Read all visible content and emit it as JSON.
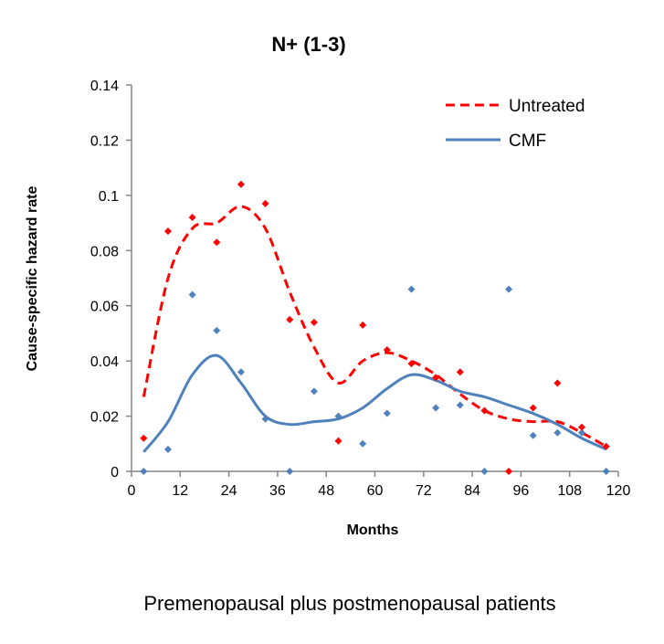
{
  "chart_data": {
    "type": "line",
    "title": "N+ (1-3)",
    "xlabel": "Months",
    "ylabel": "Cause-specific hazard rate",
    "caption": "Premenopausal plus postmenopausal patients",
    "xlim": [
      0,
      120
    ],
    "ylim": [
      0,
      0.14
    ],
    "xticks": [
      0,
      12,
      24,
      36,
      48,
      60,
      72,
      84,
      96,
      108,
      120
    ],
    "yticks": [
      0,
      0.02,
      0.04,
      0.06,
      0.08,
      0.1,
      0.12,
      0.14
    ],
    "ytick_labels": [
      "0",
      "0.02",
      "0.04",
      "0.06",
      "0.08",
      "0.1",
      "0.12",
      "0.14"
    ],
    "legend_position": "top-right",
    "grid": false,
    "series": [
      {
        "name": "Untreated",
        "color": "#ff0000",
        "style": "dashed",
        "points_x": [
          3,
          9,
          15,
          21,
          27,
          33,
          39,
          45,
          51,
          57,
          63,
          69,
          75,
          81,
          87,
          93,
          99,
          105,
          111,
          117
        ],
        "points_y": [
          0.012,
          0.087,
          0.092,
          0.083,
          0.104,
          0.097,
          0.055,
          0.054,
          0.011,
          0.053,
          0.044,
          0.039,
          0.034,
          0.036,
          0.022,
          0,
          0.023,
          0.032,
          0.016,
          0.009
        ],
        "trend_y": [
          0.027,
          0.07,
          0.088,
          0.09,
          0.096,
          0.088,
          0.065,
          0.045,
          0.032,
          0.04,
          0.043,
          0.04,
          0.035,
          0.028,
          0.022,
          0.019,
          0.018,
          0.018,
          0.014,
          0.009
        ]
      },
      {
        "name": "CMF",
        "color": "#4f81bd",
        "style": "solid",
        "points_x": [
          3,
          9,
          15,
          21,
          27,
          33,
          39,
          45,
          51,
          57,
          63,
          69,
          75,
          81,
          87,
          93,
          99,
          105,
          111,
          117
        ],
        "points_y": [
          0,
          0.008,
          0.064,
          0.051,
          0.036,
          0.019,
          0,
          0.029,
          0.02,
          0.01,
          0.021,
          0.066,
          0.023,
          0.024,
          0,
          0.066,
          0.013,
          0.014,
          0.014,
          0
        ],
        "trend_y": [
          0.007,
          0.018,
          0.035,
          0.042,
          0.032,
          0.02,
          0.017,
          0.018,
          0.019,
          0.023,
          0.03,
          0.035,
          0.033,
          0.029,
          0.027,
          0.024,
          0.021,
          0.017,
          0.012,
          0.008
        ]
      }
    ]
  }
}
